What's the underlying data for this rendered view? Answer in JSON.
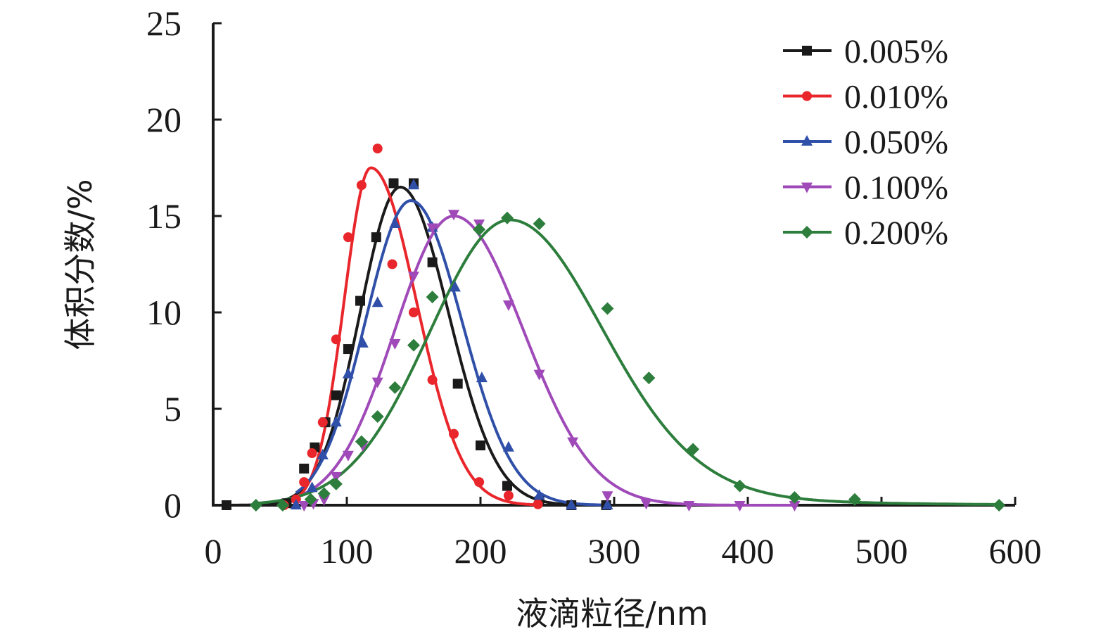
{
  "chart_data": {
    "type": "scatter",
    "xlabel": "液滴粒径/nm",
    "ylabel": "体积分数/%",
    "xlim": [
      0,
      600
    ],
    "ylim": [
      0,
      25
    ],
    "x_ticks": [
      "0",
      "100",
      "200",
      "300",
      "400",
      "500",
      "600"
    ],
    "y_ticks": [
      "0",
      "5",
      "10",
      "15",
      "20",
      "25"
    ],
    "grid": false,
    "legend_position": "top-right",
    "series": [
      {
        "name": "0.005%",
        "color": "#1a1a1a",
        "marker": "square",
        "points": [
          [
            10,
            0
          ],
          [
            55,
            0.1
          ],
          [
            68,
            1.9
          ],
          [
            76,
            3.0
          ],
          [
            84,
            4.3
          ],
          [
            92,
            5.7
          ],
          [
            101,
            8.1
          ],
          [
            110,
            10.6
          ],
          [
            122,
            13.9
          ],
          [
            135,
            16.7
          ],
          [
            150,
            16.7
          ],
          [
            164,
            12.6
          ],
          [
            183,
            6.3
          ],
          [
            200,
            3.1
          ],
          [
            220,
            1.0
          ],
          [
            244,
            0.2
          ],
          [
            268,
            0
          ],
          [
            294,
            0
          ]
        ],
        "curve": {
          "peak_x": 140,
          "peak_y": 16.5,
          "sigma_left": 30,
          "sigma_right": 36,
          "base": 0
        }
      },
      {
        "name": "0.010%",
        "color": "#e8262b",
        "marker": "circle",
        "points": [
          [
            53,
            0
          ],
          [
            62,
            0.3
          ],
          [
            68,
            1.2
          ],
          [
            74,
            2.7
          ],
          [
            82,
            4.3
          ],
          [
            92,
            8.6
          ],
          [
            101,
            13.9
          ],
          [
            111,
            16.6
          ],
          [
            123,
            18.5
          ],
          [
            134,
            12.5
          ],
          [
            150,
            10.0
          ],
          [
            164,
            6.5
          ],
          [
            180,
            3.7
          ],
          [
            199,
            1.2
          ],
          [
            221,
            0.5
          ],
          [
            243,
            0.05
          ]
        ],
        "curve": {
          "peak_x": 118,
          "peak_y": 17.5,
          "sigma_left": 20,
          "sigma_right": 34,
          "base": 0
        }
      },
      {
        "name": "0.050%",
        "color": "#2f4fa8",
        "marker": "triangle-up",
        "points": [
          [
            62,
            0
          ],
          [
            74,
            0.9
          ],
          [
            82,
            2.6
          ],
          [
            92,
            4.3
          ],
          [
            101,
            6.8
          ],
          [
            112,
            8.4
          ],
          [
            123,
            10.5
          ],
          [
            136,
            14.6
          ],
          [
            150,
            16.6
          ],
          [
            164,
            14.4
          ],
          [
            181,
            11.3
          ],
          [
            201,
            6.6
          ],
          [
            221,
            3.0
          ],
          [
            244,
            0.5
          ],
          [
            268,
            0
          ],
          [
            295,
            0
          ]
        ],
        "curve": {
          "peak_x": 148,
          "peak_y": 15.8,
          "sigma_left": 34,
          "sigma_right": 38,
          "base": 0
        }
      },
      {
        "name": "0.100%",
        "color": "#9f4ab8",
        "marker": "triangle-down",
        "points": [
          [
            68,
            0
          ],
          [
            75,
            0.1
          ],
          [
            83,
            0.3
          ],
          [
            92,
            1.5
          ],
          [
            101,
            2.6
          ],
          [
            112,
            3.1
          ],
          [
            123,
            6.4
          ],
          [
            136,
            8.4
          ],
          [
            150,
            11.9
          ],
          [
            164,
            14.4
          ],
          [
            180,
            15.1
          ],
          [
            199,
            14.6
          ],
          [
            221,
            10.4
          ],
          [
            244,
            6.8
          ],
          [
            269,
            3.3
          ],
          [
            295,
            0.5
          ],
          [
            324,
            0.1
          ],
          [
            356,
            0
          ],
          [
            394,
            0
          ],
          [
            435,
            0
          ]
        ],
        "curve": {
          "peak_x": 180,
          "peak_y": 15.0,
          "sigma_left": 44,
          "sigma_right": 52,
          "base": 0
        }
      },
      {
        "name": "0.200%",
        "color": "#2d7d3c",
        "marker": "diamond",
        "points": [
          [
            32,
            0
          ],
          [
            52,
            0
          ],
          [
            73,
            0.3
          ],
          [
            83,
            0.6
          ],
          [
            92,
            1.1
          ],
          [
            111,
            3.3
          ],
          [
            123,
            4.6
          ],
          [
            136,
            6.1
          ],
          [
            150,
            8.3
          ],
          [
            164,
            10.8
          ],
          [
            199,
            14.3
          ],
          [
            220,
            14.9
          ],
          [
            244,
            14.6
          ],
          [
            295,
            10.2
          ],
          [
            326,
            6.6
          ],
          [
            359,
            2.9
          ],
          [
            394,
            1.0
          ],
          [
            435,
            0.4
          ],
          [
            480,
            0.3
          ],
          [
            588,
            0
          ]
        ],
        "curve": {
          "peak_x": 222,
          "peak_y": 14.8,
          "sigma_left": 60,
          "sigma_right": 70,
          "base": 0,
          "tail_amp": 0.55,
          "tail_decay": 85
        }
      }
    ]
  }
}
